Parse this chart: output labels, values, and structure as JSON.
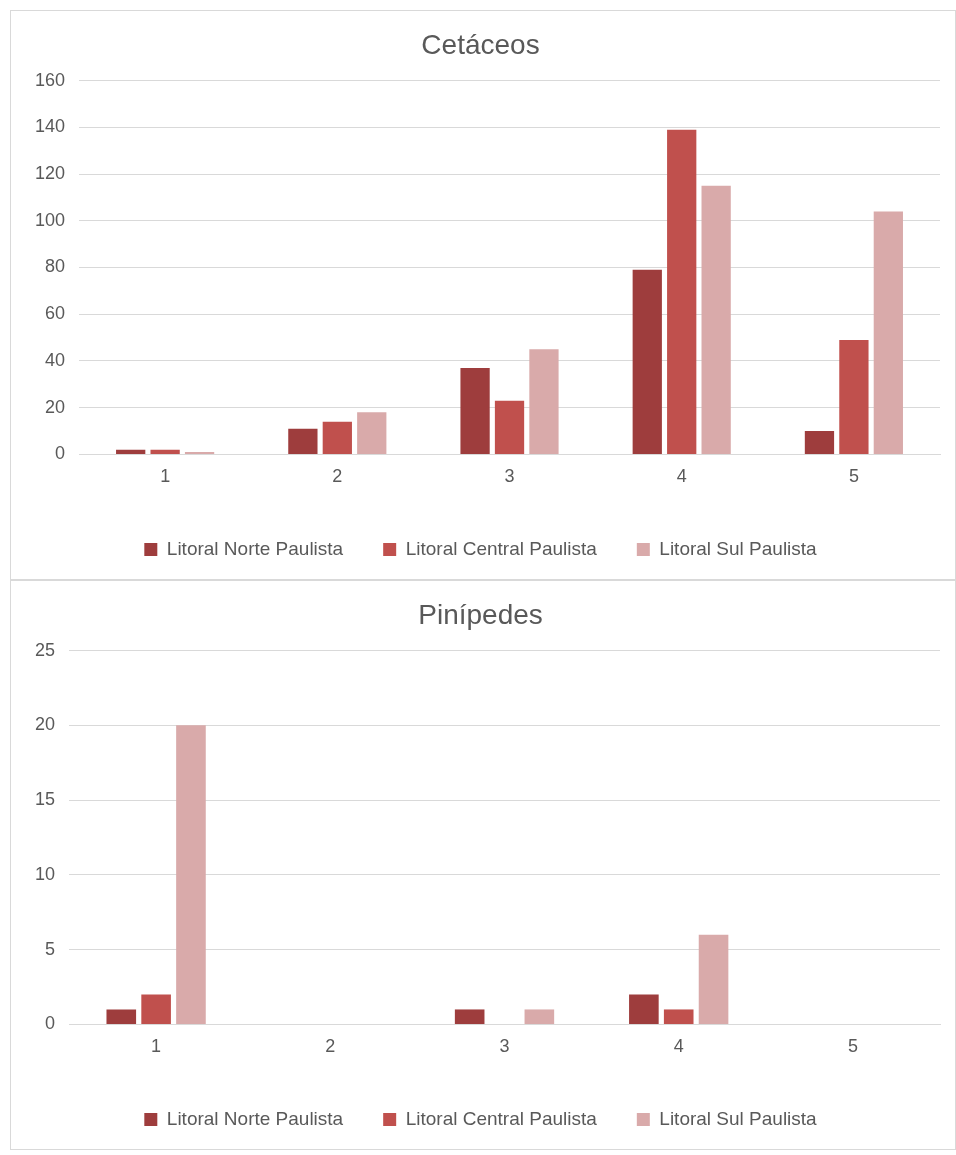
{
  "chart_data": [
    {
      "type": "bar",
      "title": "Cetáceos",
      "categories": [
        "1",
        "2",
        "3",
        "4",
        "5"
      ],
      "series": [
        {
          "name": "Litoral Norte Paulista",
          "color": "#9e3d3d",
          "values": [
            2,
            11,
            37,
            79,
            10
          ]
        },
        {
          "name": "Litoral Central Paulista",
          "color": "#c0504d",
          "values": [
            2,
            14,
            23,
            139,
            49
          ]
        },
        {
          "name": "Litoral Sul Paulista",
          "color": "#d9aaaa",
          "values": [
            1,
            18,
            45,
            115,
            104
          ]
        }
      ],
      "ylim": [
        0,
        160
      ],
      "yticks": [
        0,
        20,
        40,
        60,
        80,
        100,
        120,
        140,
        160
      ],
      "grid": "y",
      "legend": "bottom"
    },
    {
      "type": "bar",
      "title": "Pinípedes",
      "categories": [
        "1",
        "2",
        "3",
        "4",
        "5"
      ],
      "series": [
        {
          "name": "Litoral Norte Paulista",
          "color": "#9e3d3d",
          "values": [
            1,
            0,
            1,
            2,
            0
          ]
        },
        {
          "name": "Litoral Central Paulista",
          "color": "#c0504d",
          "values": [
            2,
            0,
            0,
            1,
            0
          ]
        },
        {
          "name": "Litoral Sul Paulista",
          "color": "#d9aaaa",
          "values": [
            20,
            0,
            1,
            6,
            0
          ]
        }
      ],
      "ylim": [
        0,
        25
      ],
      "yticks": [
        0,
        5,
        10,
        15,
        20,
        25
      ],
      "grid": "y",
      "legend": "bottom"
    }
  ]
}
